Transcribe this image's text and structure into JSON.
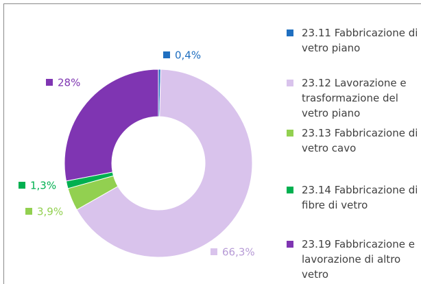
{
  "chart_data": {
    "type": "donut",
    "categories": [
      "23.11  Fabbricazione di vetro piano",
      "23.12  Lavorazione e trasformazione del vetro piano",
      "23.13  Fabbricazione di vetro cavo",
      "23.14  Fabbricazione di fibre di vetro",
      "23.19  Fabbricazione e lavorazione di altro vetro"
    ],
    "values": [
      0.4,
      66.3,
      3.9,
      1.3,
      28
    ],
    "value_labels": [
      "0,4%",
      "66,3%",
      "3,9%",
      "1,3%",
      "28%"
    ],
    "colors": [
      "#1f6fc0",
      "#d9c3ec",
      "#92d050",
      "#00b050",
      "#7f35b2"
    ],
    "legend": "right"
  }
}
